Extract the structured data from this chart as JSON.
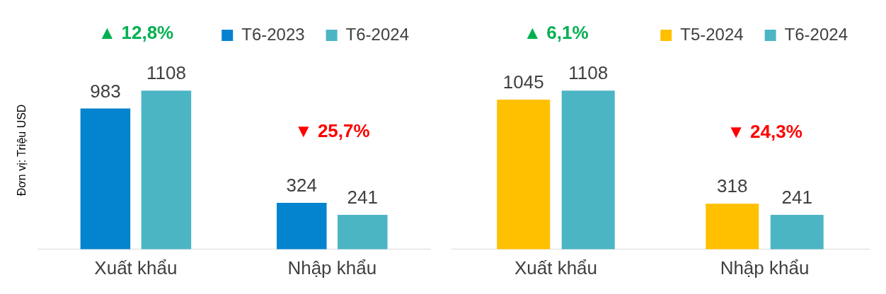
{
  "chart_data": [
    {
      "type": "bar",
      "ylabel": "Đơn vị: Triệu USD",
      "categories": [
        "Xuất khẩu",
        "Nhập khẩu"
      ],
      "series": [
        {
          "name": "T6-2023",
          "color": "#0483ce",
          "values": [
            983,
            324
          ]
        },
        {
          "name": "T6-2024",
          "color": "#4bb5c4",
          "values": [
            1108,
            241
          ]
        }
      ],
      "data_labels": true,
      "legend": "top",
      "grid": false,
      "annotations": [
        "▲ 12,8%",
        "▼ 25,7%"
      ]
    },
    {
      "type": "bar",
      "categories": [
        "Xuất khẩu",
        "Nhập khẩu"
      ],
      "series": [
        {
          "name": "T5-2024",
          "color": "#ffc000",
          "values": [
            1045,
            318
          ]
        },
        {
          "name": "T6-2024",
          "color": "#4bb5c4",
          "values": [
            1108,
            241
          ]
        }
      ],
      "data_labels": true,
      "legend": "top",
      "grid": false,
      "annotations": [
        "▲ 6,1%",
        "▼ 24,3%"
      ]
    }
  ]
}
